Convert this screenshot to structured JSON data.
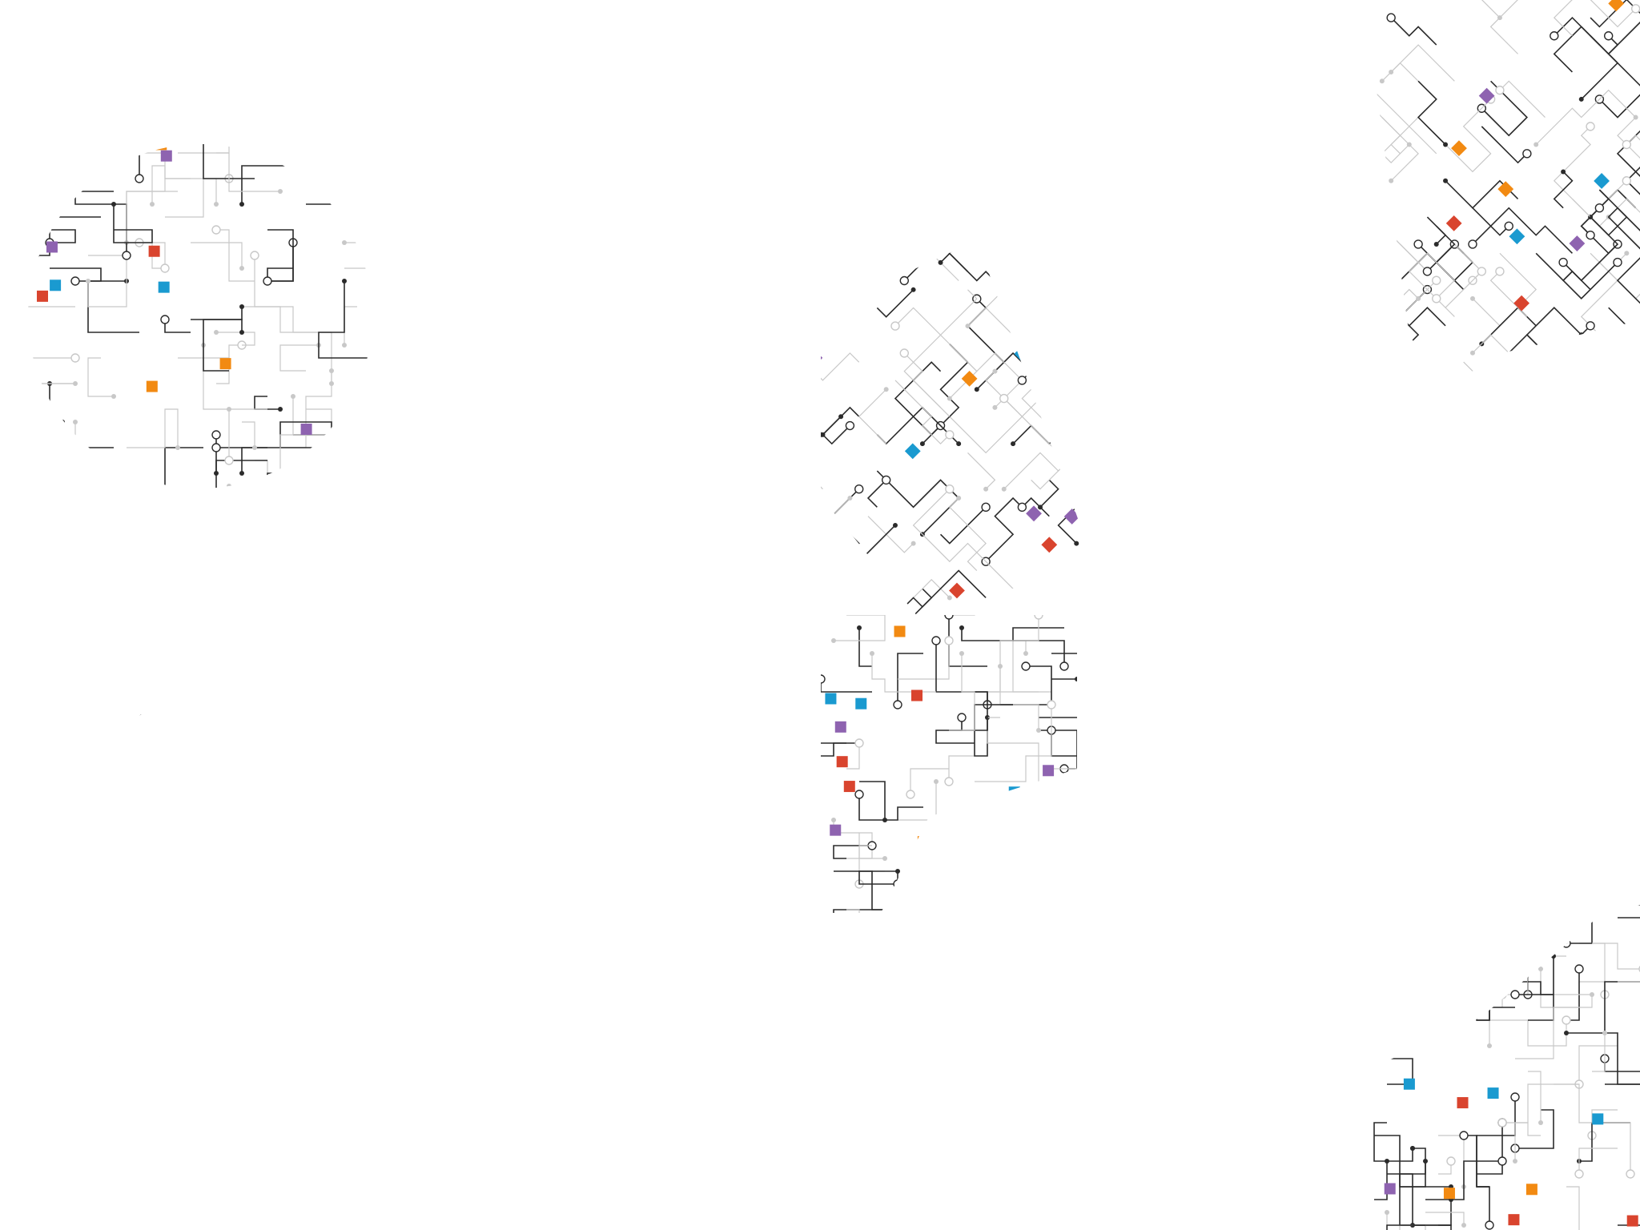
{
  "background_color": "#ffffff",
  "artwork": {
    "style": "decorative circuit-board line art",
    "line_colors": {
      "dark": "#2b2b2b",
      "light": "#c8c8c8"
    },
    "accent_colors": [
      "#d9442e",
      "#f28a12",
      "#1a9ad0",
      "#8e63b0"
    ],
    "clusters": [
      {
        "name": "sphere-circuit",
        "shape": "sphere"
      },
      {
        "name": "arc-circuit",
        "shape": "arc"
      },
      {
        "name": "center-diamond-circuit",
        "shape": "rotated-grid"
      },
      {
        "name": "center-lower-circuit",
        "shape": "grid"
      },
      {
        "name": "top-right-circuit",
        "shape": "rotated-grid"
      },
      {
        "name": "bottom-right-circuit",
        "shape": "grid"
      }
    ]
  }
}
